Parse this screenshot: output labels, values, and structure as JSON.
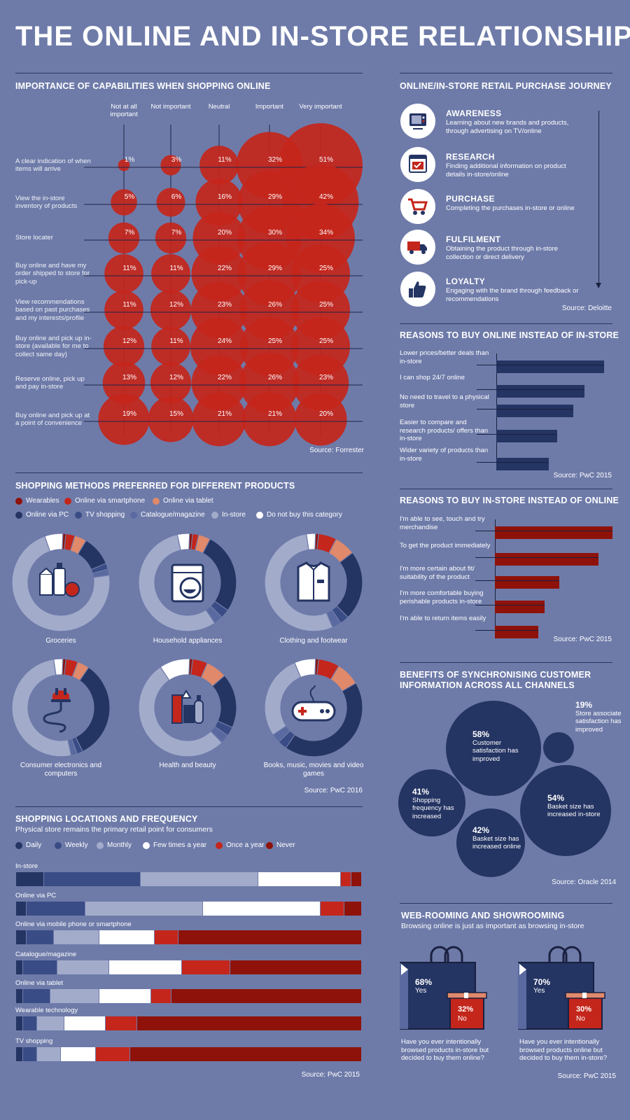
{
  "title": "THE ONLINE AND IN-STORE RELATIONSHIP",
  "colors": {
    "bg": "#6e7ba9",
    "navy": "#243463",
    "red": "#c4261c",
    "darkred": "#8e1209",
    "orange": "#e0896b"
  },
  "capabilities": {
    "heading": "IMPORTANCE OF CAPABILITIES WHEN SHOPPING ONLINE",
    "columns": [
      "Not at all important",
      "Not important",
      "Neutral",
      "Important",
      "Very important"
    ],
    "rows": [
      {
        "label": "A clear indication of when items will arrive",
        "values": [
          "1%",
          "3%",
          "11%",
          "32%",
          "51%"
        ],
        "nums": [
          1,
          3,
          11,
          32,
          51
        ]
      },
      {
        "label": "View the in-store inventory of products",
        "values": [
          "5%",
          "6%",
          "16%",
          "29%",
          "42%"
        ],
        "nums": [
          5,
          6,
          16,
          29,
          42
        ]
      },
      {
        "label": "Store locater",
        "values": [
          "7%",
          "7%",
          "20%",
          "30%",
          "34%"
        ],
        "nums": [
          7,
          7,
          20,
          30,
          34
        ]
      },
      {
        "label": "Buy online and have my order shipped to store for pick-up",
        "values": [
          "11%",
          "11%",
          "22%",
          "29%",
          "25%"
        ],
        "nums": [
          11,
          11,
          22,
          29,
          25
        ]
      },
      {
        "label": "View recommendations based on past purchases and my interests/profile",
        "values": [
          "11%",
          "12%",
          "23%",
          "26%",
          "25%"
        ],
        "nums": [
          11,
          12,
          23,
          26,
          25
        ]
      },
      {
        "label": "Buy online and pick up in-store (available for me to collect same day)",
        "values": [
          "12%",
          "11%",
          "24%",
          "25%",
          "25%"
        ],
        "nums": [
          12,
          11,
          24,
          25,
          25
        ]
      },
      {
        "label": "Reserve online, pick up and pay in-store",
        "values": [
          "13%",
          "12%",
          "22%",
          "26%",
          "23%"
        ],
        "nums": [
          13,
          12,
          22,
          26,
          23
        ]
      },
      {
        "label": "Buy online and pick up at a point of convenience",
        "values": [
          "19%",
          "15%",
          "21%",
          "21%",
          "20%"
        ],
        "nums": [
          19,
          15,
          21,
          21,
          20
        ]
      }
    ],
    "source": "Source: Forrester"
  },
  "journey": {
    "heading": "ONLINE/IN-STORE RETAIL PURCHASE JOURNEY",
    "steps": [
      {
        "title": "AWARENESS",
        "desc": "Learning about new brands and products, through advertising on TV/online",
        "icon": "tv-icon"
      },
      {
        "title": "RESEARCH",
        "desc": "Finding additional information on product details in-store/online",
        "icon": "browser-checklist-icon"
      },
      {
        "title": "PURCHASE",
        "desc": "Completing the purchases in-store or online",
        "icon": "shopping-cart-icon"
      },
      {
        "title": "FULFILMENT",
        "desc": "Obtaining the product through in-store collection or direct delivery",
        "icon": "delivery-truck-icon"
      },
      {
        "title": "LOYALTY",
        "desc": "Engaging with the brand through feedback or recommendations",
        "icon": "thumbs-up-icon"
      }
    ],
    "source": "Source: Deloitte"
  },
  "online_reasons": {
    "heading": "REASONS TO BUY ONLINE INSTEAD OF IN-STORE",
    "items": [
      {
        "label": "Lower prices/better deals than in-store",
        "value": 0.95
      },
      {
        "label": "I can shop 24/7 online",
        "value": 0.78
      },
      {
        "label": "No need to travel to a physical store",
        "value": 0.68
      },
      {
        "label": "Easier to compare and research products/ offers than in-store",
        "value": 0.54
      },
      {
        "label": "Wider variety of products than in-store",
        "value": 0.46
      }
    ],
    "source": "Source: PwC 2015"
  },
  "instore_reasons": {
    "heading": "REASONS TO BUY IN-STORE INSTEAD OF ONLINE",
    "items": [
      {
        "label": "I'm able to see, touch and try merchandise",
        "value": 1.0
      },
      {
        "label": "To get the product immediately",
        "value": 0.88
      },
      {
        "label": "I'm more certain about fit/ suitability of the product",
        "value": 0.55
      },
      {
        "label": "I'm more comfortable buying perishable products in-store",
        "value": 0.42
      },
      {
        "label": "I'm able to return items easily",
        "value": 0.37
      }
    ],
    "source": "Source: PwC 2015"
  },
  "methods": {
    "heading": "SHOPPING METHODS PREFERRED FOR DIFFERENT PRODUCTS",
    "legend": [
      {
        "label": "Wearables",
        "color": "#8e1209"
      },
      {
        "label": "Online via smartphone",
        "color": "#c4261c"
      },
      {
        "label": "Online via tablet",
        "color": "#e0896b"
      },
      {
        "label": "Online via PC",
        "color": "#243463"
      },
      {
        "label": "TV shopping",
        "color": "#3a4c85"
      },
      {
        "label": "Catalogue/magazine",
        "color": "#5a6aa0"
      },
      {
        "label": "In-store",
        "color": "#a3abcb"
      },
      {
        "label": "Do not buy this category",
        "color": "#ffffff"
      }
    ],
    "donuts": [
      {
        "label": "Groceries",
        "icon": "groceries-icon",
        "segments": [
          0.01,
          0.03,
          0.04,
          0.1,
          0.02,
          0.02,
          0.72,
          0.06
        ]
      },
      {
        "label": "Household appliances",
        "icon": "washing-machine-icon",
        "segments": [
          0.01,
          0.02,
          0.04,
          0.27,
          0.03,
          0.03,
          0.56,
          0.04
        ]
      },
      {
        "label": "Clothing and footwear",
        "icon": "shirt-icon",
        "segments": [
          0.01,
          0.06,
          0.07,
          0.23,
          0.03,
          0.03,
          0.54,
          0.03
        ]
      },
      {
        "label": "Consumer electronics and computers",
        "icon": "power-plug-icon",
        "segments": [
          0.01,
          0.04,
          0.04,
          0.33,
          0.02,
          0.02,
          0.51,
          0.03
        ]
      },
      {
        "label": "Health and beauty",
        "icon": "cosmetics-icon",
        "segments": [
          0.01,
          0.05,
          0.07,
          0.18,
          0.03,
          0.03,
          0.53,
          0.1
        ]
      },
      {
        "label": "Books, music, movies and video games",
        "icon": "gamepad-icon",
        "segments": [
          0.01,
          0.07,
          0.08,
          0.43,
          0.03,
          0.03,
          0.28,
          0.07
        ]
      }
    ],
    "source": "Source: PwC 2016"
  },
  "frequency": {
    "heading": "SHOPPING LOCATIONS AND FREQUENCY",
    "subheading": "Physical store remains the primary retail point for consumers",
    "legend": [
      {
        "label": "Daily",
        "color": "#243463"
      },
      {
        "label": "Weekly",
        "color": "#3a4c85"
      },
      {
        "label": "Monthly",
        "color": "#a3abcb"
      },
      {
        "label": "Few times a year",
        "color": "#ffffff"
      },
      {
        "label": "Once a year",
        "color": "#c4261c"
      },
      {
        "label": "Never",
        "color": "#8e1209"
      }
    ],
    "rows": [
      {
        "label": "In-store",
        "segments": [
          0.08,
          0.28,
          0.34,
          0.24,
          0.03,
          0.03
        ]
      },
      {
        "label": "Online via PC",
        "segments": [
          0.03,
          0.17,
          0.34,
          0.34,
          0.07,
          0.05
        ]
      },
      {
        "label": "Online via mobile phone or smartphone",
        "segments": [
          0.03,
          0.08,
          0.13,
          0.16,
          0.07,
          0.53
        ]
      },
      {
        "label": "Catalogue/magazine",
        "segments": [
          0.02,
          0.1,
          0.15,
          0.21,
          0.14,
          0.38
        ]
      },
      {
        "label": "Online via tablet",
        "segments": [
          0.02,
          0.08,
          0.14,
          0.15,
          0.06,
          0.55
        ]
      },
      {
        "label": "Wearable technology",
        "segments": [
          0.02,
          0.04,
          0.08,
          0.12,
          0.09,
          0.65
        ]
      },
      {
        "label": "TV shopping",
        "segments": [
          0.02,
          0.04,
          0.07,
          0.1,
          0.1,
          0.67
        ]
      }
    ],
    "source": "Source: PwC 2015"
  },
  "benefits": {
    "heading_line1": "BENEFITS OF SYNCHRONISING CUSTOMER",
    "heading_line2": "INFORMATION ACROSS ALL CHANNELS",
    "items": [
      {
        "pct": "58%",
        "text": "Customer satisfaction has improved",
        "value": 58
      },
      {
        "pct": "19%",
        "text": "Store associate satisfaction has improved",
        "value": 19
      },
      {
        "pct": "41%",
        "text": "Shopping frequency has increased",
        "value": 41
      },
      {
        "pct": "54%",
        "text": "Basket size has increased in-store",
        "value": 54
      },
      {
        "pct": "42%",
        "text": "Basket size has increased online",
        "value": 42
      }
    ],
    "source": "Source: Oracle 2014"
  },
  "webrooming": {
    "heading": "WEB-ROOMING AND SHOWROOMING",
    "subheading": "Browsing online is just as important as browsing in-store",
    "bags": [
      {
        "yes_pct": "68%",
        "yes": "Yes",
        "no_pct": "32%",
        "no": "No",
        "question": "Have you ever intentionally browsed products in-store but decided to buy them online?",
        "yes_value": 68,
        "no_value": 32
      },
      {
        "yes_pct": "70%",
        "yes": "Yes",
        "no_pct": "30%",
        "no": "No",
        "question": "Have you ever intentionally browsed products online but decided to buy them in-store?",
        "yes_value": 70,
        "no_value": 30
      }
    ],
    "source": "Source: PwC 2015"
  }
}
